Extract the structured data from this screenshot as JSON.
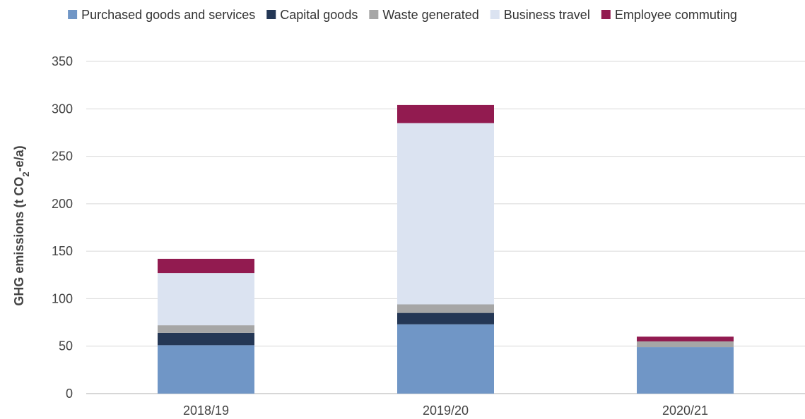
{
  "chart_data": {
    "type": "bar",
    "stacked": true,
    "categories": [
      "2018/19",
      "2019/20",
      "2020/21"
    ],
    "series": [
      {
        "name": "Purchased goods and services",
        "color": "#7096c6",
        "values": [
          51,
          73,
          49
        ]
      },
      {
        "name": "Capital goods",
        "color": "#243755",
        "values": [
          13,
          12,
          0
        ]
      },
      {
        "name": "Waste generated",
        "color": "#a6a6a6",
        "values": [
          8,
          9,
          6
        ]
      },
      {
        "name": "Business travel",
        "color": "#dbe3f1",
        "values": [
          55,
          191,
          0
        ]
      },
      {
        "name": "Employee commuting",
        "color": "#921b50",
        "values": [
          15,
          19,
          5
        ]
      }
    ],
    "ylabel_main": "GHG emissions (t CO",
    "ylabel_sub": "2",
    "ylabel_tail": "-e/a)",
    "ylim": [
      0,
      350
    ],
    "yticks": [
      "0",
      "50",
      "100",
      "150",
      "200",
      "250",
      "300",
      "350"
    ],
    "grid": true,
    "legend_position": "top"
  }
}
